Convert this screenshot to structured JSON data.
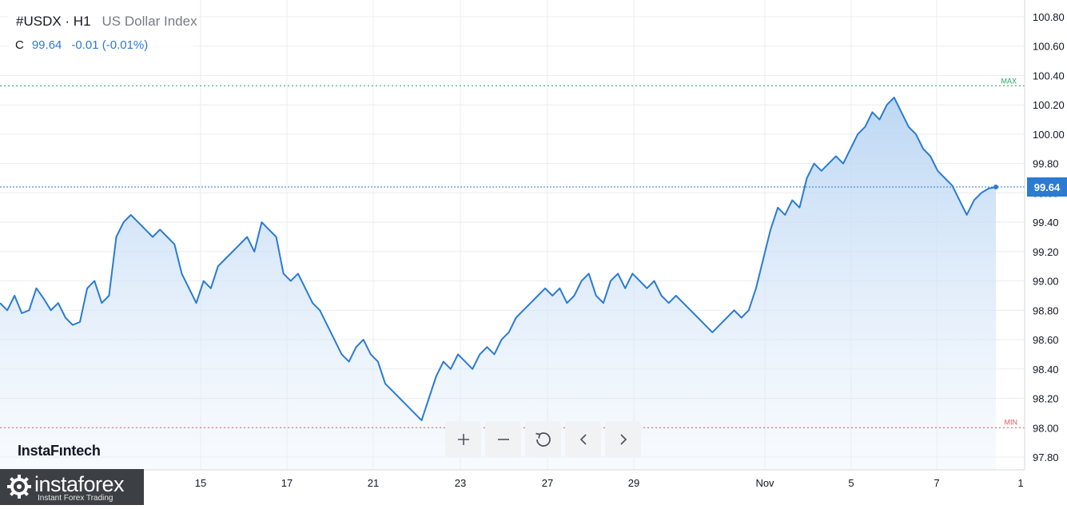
{
  "header": {
    "symbol": "#USDX · H1",
    "name": "US Dollar Index",
    "close_label": "C",
    "close_value": "99.64",
    "change": "-0.01 (-0.01%)"
  },
  "brand": {
    "watermark": "InstaFıntech"
  },
  "logo": {
    "title": "instaforex",
    "subtitle": "Instant Forex Trading"
  },
  "controls": [
    {
      "name": "zoom-in-button",
      "icon": "plus-icon"
    },
    {
      "name": "zoom-out-button",
      "icon": "minus-icon"
    },
    {
      "name": "reset-button",
      "icon": "reset-icon"
    },
    {
      "name": "scroll-left-button",
      "icon": "chevron-left-icon"
    },
    {
      "name": "scroll-right-button",
      "icon": "chevron-right-icon"
    }
  ],
  "colors": {
    "line": "#2a7bd4",
    "fill_top": "#bcd6f3",
    "max": "#26a65b",
    "min": "#e05a5a",
    "grid": "#ececec"
  },
  "chart_data": {
    "type": "area",
    "y_ticks": [
      "100.80",
      "100.60",
      "100.40",
      "100.20",
      "100.00",
      "99.80",
      "99.60",
      "99.40",
      "99.20",
      "99.00",
      "98.80",
      "98.60",
      "98.40",
      "98.20",
      "98.00",
      "97.80"
    ],
    "ylim": [
      97.72,
      100.92
    ],
    "x_ticks": [
      "15",
      "17",
      "21",
      "23",
      "27",
      "29",
      "Nov",
      "5",
      "7",
      "1"
    ],
    "last_price": "99.64",
    "max_label": "MAX",
    "min_label": "MIN",
    "max_value": 100.33,
    "min_value": 98.0,
    "series": [
      {
        "values": [
          98.85,
          98.8,
          98.9,
          98.78,
          98.8,
          98.95,
          98.88,
          98.8,
          98.85,
          98.75,
          98.7,
          98.72,
          98.95,
          99.0,
          98.85,
          98.9,
          99.3,
          99.4,
          99.45,
          99.4,
          99.35,
          99.3,
          99.35,
          99.3,
          99.25,
          99.05,
          98.95,
          98.85,
          99.0,
          98.95,
          99.1,
          99.15,
          99.2,
          99.25,
          99.3,
          99.2,
          99.4,
          99.35,
          99.3,
          99.05,
          99.0,
          99.05,
          98.95,
          98.85,
          98.8,
          98.7,
          98.6,
          98.5,
          98.45,
          98.55,
          98.6,
          98.5,
          98.45,
          98.3,
          98.25,
          98.2,
          98.15,
          98.1,
          98.05,
          98.2,
          98.35,
          98.45,
          98.4,
          98.5,
          98.45,
          98.4,
          98.5,
          98.55,
          98.5,
          98.6,
          98.65,
          98.75,
          98.8,
          98.85,
          98.9,
          98.95,
          98.9,
          98.95,
          98.85,
          98.9,
          99.0,
          99.05,
          98.9,
          98.85,
          99.0,
          99.05,
          98.95,
          99.05,
          99.0,
          98.95,
          99.0,
          98.9,
          98.85,
          98.9,
          98.85,
          98.8,
          98.75,
          98.7,
          98.65,
          98.7,
          98.75,
          98.8,
          98.75,
          98.8,
          98.95,
          99.15,
          99.35,
          99.5,
          99.45,
          99.55,
          99.5,
          99.7,
          99.8,
          99.75,
          99.8,
          99.85,
          99.8,
          99.9,
          100.0,
          100.05,
          100.15,
          100.1,
          100.2,
          100.25,
          100.15,
          100.05,
          100.0,
          99.9,
          99.85,
          99.75,
          99.7,
          99.65,
          99.55,
          99.45,
          99.55,
          99.6,
          99.63,
          99.64
        ]
      }
    ]
  }
}
